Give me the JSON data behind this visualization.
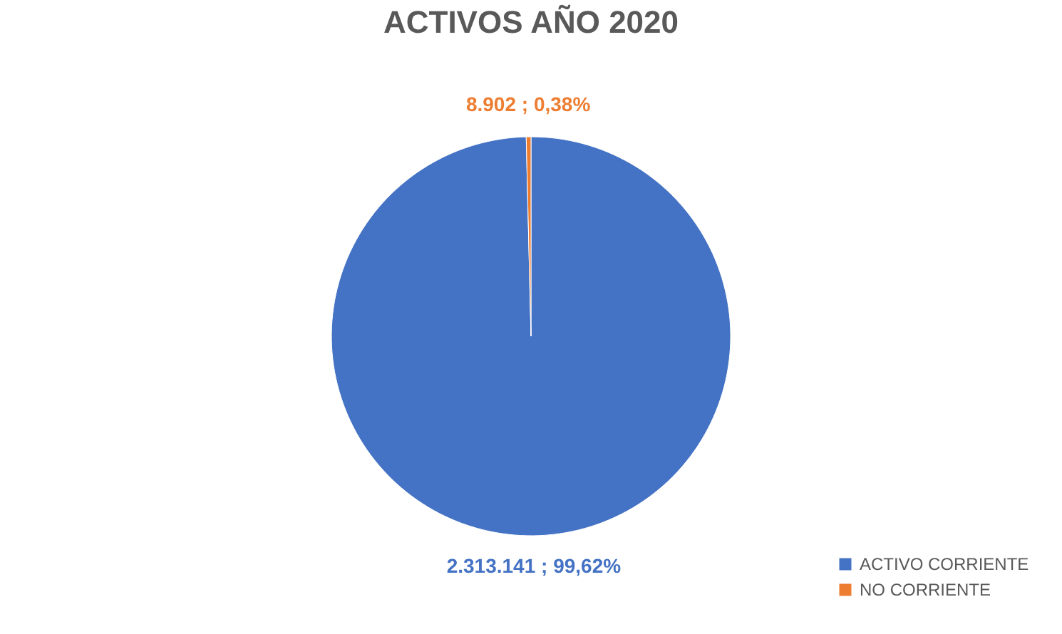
{
  "chart_data": {
    "type": "pie",
    "title": "ACTIVOS AÑO 2020",
    "categories": [
      "ACTIVO CORRIENTE",
      "NO CORRIENTE"
    ],
    "values": [
      2313141,
      8902
    ],
    "colors": [
      "#4472c4",
      "#ed7d31"
    ],
    "value_labels": [
      "2.313.141 ; 99,62%",
      "8.902 ; 0,38%"
    ],
    "legend": "bottom right"
  }
}
